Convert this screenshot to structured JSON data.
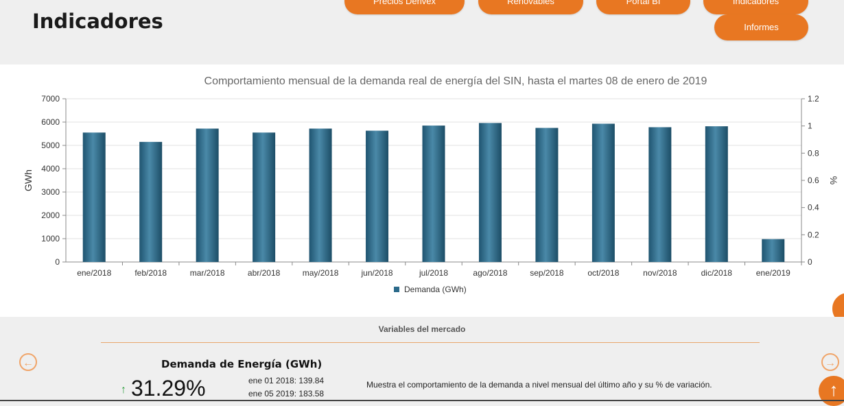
{
  "header": {
    "title": "Indicadores",
    "nav": [
      {
        "label": "Precios Derivex"
      },
      {
        "label": "Renovables"
      },
      {
        "label": "Portal BI"
      },
      {
        "label": "Indicadores"
      },
      {
        "label": "Informes"
      }
    ]
  },
  "chart_data": {
    "type": "bar",
    "title": "Comportamiento mensual de la demanda real de energía del SIN, hasta el martes 08 de enero de 2019",
    "categories": [
      "ene/2018",
      "feb/2018",
      "mar/2018",
      "abr/2018",
      "may/2018",
      "jun/2018",
      "jul/2018",
      "ago/2018",
      "sep/2018",
      "oct/2018",
      "nov/2018",
      "dic/2018",
      "ene/2019"
    ],
    "series": [
      {
        "name": "Demanda (GWh)",
        "values": [
          5550,
          5150,
          5720,
          5550,
          5720,
          5630,
          5850,
          5960,
          5750,
          5930,
          5780,
          5820,
          980
        ]
      }
    ],
    "ylabel": "GWh",
    "ylim": [
      0,
      7000
    ],
    "yticks": [
      "0",
      "1000",
      "2000",
      "3000",
      "4000",
      "5000",
      "6000",
      "7000"
    ],
    "y2label": "%",
    "y2lim": [
      0,
      1.2
    ],
    "y2ticks": [
      "0",
      "0.2",
      "0.4",
      "0.6",
      "0.8",
      "1",
      "1.2"
    ],
    "grid": true,
    "legend": "bottom-center",
    "bar_color": "#2b6a8a"
  },
  "variables": {
    "title": "Variables del mercado",
    "prev_icon": "←",
    "next_icon": "→",
    "card": {
      "title": "Demanda de Energía (GWh)",
      "trend_icon": "↑",
      "percent": "31.29%",
      "line1": "ene 01 2018: 139.84",
      "line2": "ene 05 2019: 183.58",
      "description": "Muestra el comportamiento de la demanda a nivel mensual del último año y su % de variación."
    }
  },
  "scroll_top_icon": "↑",
  "colors": {
    "accent": "#e87722",
    "bar": "#2b6a8a",
    "trend_up": "#2e9e3e"
  }
}
